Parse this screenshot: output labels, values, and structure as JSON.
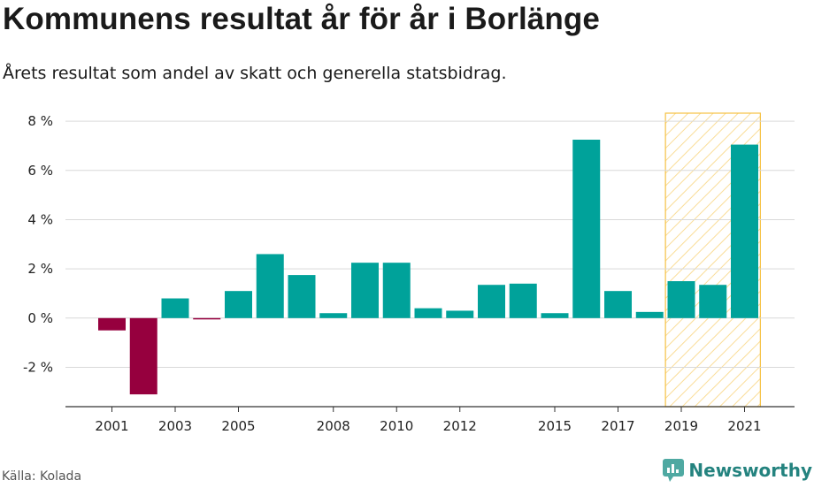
{
  "header": {
    "title": "Kommunens resultat år för år i Borlänge",
    "subtitle": "Årets resultat som andel av skatt och generella statsbidrag."
  },
  "footer": {
    "source": "Källa: Kolada",
    "brand": "Newsworthy"
  },
  "colors": {
    "positive": "#00a29a",
    "negative": "#96003e",
    "highlight": "#f6c142",
    "grid": "#d9d9d9"
  },
  "chart_data": {
    "type": "bar",
    "x": [
      2001,
      2002,
      2003,
      2004,
      2005,
      2006,
      2007,
      2008,
      2009,
      2010,
      2011,
      2012,
      2013,
      2014,
      2015,
      2016,
      2017,
      2018,
      2019,
      2020,
      2021
    ],
    "values": [
      -0.5,
      -3.1,
      0.8,
      -0.05,
      1.1,
      2.6,
      1.75,
      0.2,
      2.25,
      2.25,
      0.4,
      0.3,
      1.35,
      1.4,
      0.2,
      7.25,
      1.1,
      0.25,
      1.5,
      1.35,
      7.05
    ],
    "y_ticks": [
      -2,
      0,
      2,
      4,
      6,
      8
    ],
    "y_tick_labels": [
      "-2 %",
      "0 %",
      "2 %",
      "4 %",
      "6 %",
      "8 %"
    ],
    "x_tick_labels": [
      "2001",
      "2003",
      "2005",
      "2008",
      "2010",
      "2012",
      "2015",
      "2017",
      "2019",
      "2021"
    ],
    "ylim": [
      -3.6,
      8.4
    ],
    "highlight_range": [
      2019,
      2021
    ],
    "grid": true
  }
}
